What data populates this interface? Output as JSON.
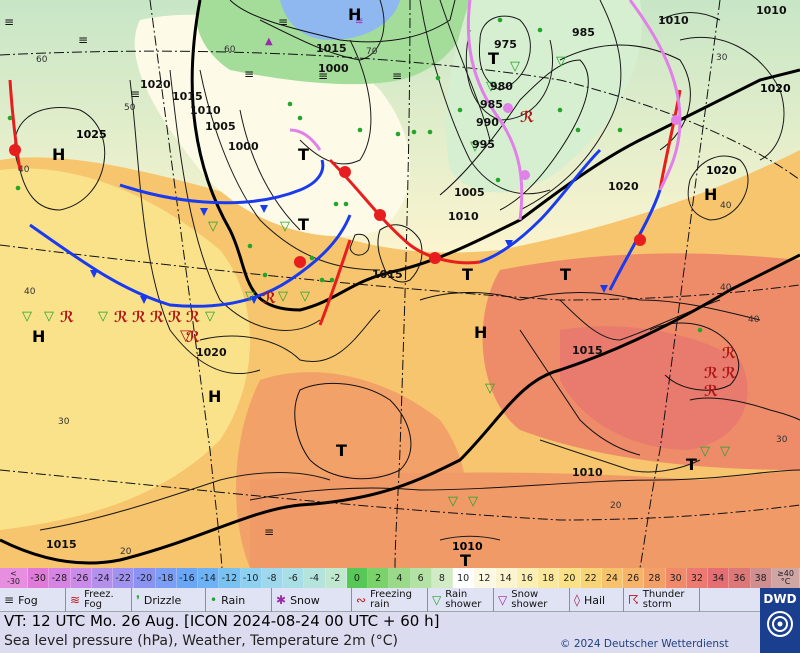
{
  "map": {
    "pressure_centres": [
      {
        "letter": "H",
        "value": "1025"
      },
      {
        "letter": "H",
        "value": "1020"
      },
      {
        "letter": "H",
        "value": "1020"
      },
      {
        "letter": "H",
        "value": ""
      },
      {
        "letter": "H",
        "value": ""
      },
      {
        "letter": "T",
        "value": "975"
      },
      {
        "letter": "T",
        "value": "995"
      },
      {
        "letter": "T",
        "value": ""
      },
      {
        "letter": "T",
        "value": ""
      },
      {
        "letter": "T",
        "value": ""
      },
      {
        "letter": "T",
        "value": "1010"
      }
    ],
    "isobar_labels": [
      "1015",
      "1010",
      "1005",
      "1000",
      "1000",
      "995",
      "990",
      "985",
      "980",
      "975",
      "985",
      "1010",
      "1005",
      "1010",
      "1020",
      "1015",
      "1015",
      "1020",
      "1015",
      "1020",
      "1010",
      "1010",
      "1015"
    ],
    "temperature_labels": [
      "40",
      "40",
      "40",
      "30",
      "20",
      "20",
      "30",
      "40",
      "40",
      "50",
      "60",
      "60",
      "70",
      "30"
    ],
    "colors": {
      "warm_front": "#e81e1e",
      "cold_front": "#1a3aef",
      "occlusion": "#e080e8",
      "rain": "#22a52a",
      "thunder": "#b01818",
      "sea_hot": "#f49a63"
    }
  },
  "scale": {
    "low_edge_top": "<",
    "low_edge_bottom": "-30",
    "high_edge_top": "≥40",
    "high_edge_bottom": "°C",
    "items": [
      {
        "label": "-30",
        "color": "#e07ad8"
      },
      {
        "label": "-28",
        "color": "#d584e3"
      },
      {
        "label": "-26",
        "color": "#c98ae8"
      },
      {
        "label": "-24",
        "color": "#b490ed"
      },
      {
        "label": "-22",
        "color": "#a292ef"
      },
      {
        "label": "-20",
        "color": "#8a93f2"
      },
      {
        "label": "-18",
        "color": "#7a9df5"
      },
      {
        "label": "-16",
        "color": "#6aa6f6"
      },
      {
        "label": "-14",
        "color": "#6cb2f4"
      },
      {
        "label": "-12",
        "color": "#78c2f2"
      },
      {
        "label": "-10",
        "color": "#8ed0f0"
      },
      {
        "label": "-8",
        "color": "#9fd7ec"
      },
      {
        "label": "-6",
        "color": "#a8dee6"
      },
      {
        "label": "-4",
        "color": "#b4e4dc"
      },
      {
        "label": "-2",
        "color": "#c0e8cf"
      },
      {
        "label": "0",
        "color": "#57c758"
      },
      {
        "label": "2",
        "color": "#7ad26a"
      },
      {
        "label": "4",
        "color": "#9ad88a"
      },
      {
        "label": "6",
        "color": "#b4e2a4"
      },
      {
        "label": "8",
        "color": "#d1ecc4"
      },
      {
        "label": "10",
        "color": "#ffffff"
      },
      {
        "label": "12",
        "color": "#fbf8e4"
      },
      {
        "label": "14",
        "color": "#fcf4cf"
      },
      {
        "label": "16",
        "color": "#fcefb6"
      },
      {
        "label": "18",
        "color": "#fbe89c"
      },
      {
        "label": "20",
        "color": "#fae186"
      },
      {
        "label": "22",
        "color": "#f8d478"
      },
      {
        "label": "24",
        "color": "#f6c36b"
      },
      {
        "label": "26",
        "color": "#f5b46a"
      },
      {
        "label": "28",
        "color": "#f3a068"
      },
      {
        "label": "30",
        "color": "#f08a6a"
      },
      {
        "label": "32",
        "color": "#ec7a70"
      },
      {
        "label": "34",
        "color": "#e46e72"
      },
      {
        "label": "36",
        "color": "#dc7878"
      },
      {
        "label": "38",
        "color": "#cf8f90"
      }
    ]
  },
  "legend": [
    {
      "icon": "fog-icon",
      "symbol": "≡",
      "label": "Fog",
      "width": 66,
      "color": "#222"
    },
    {
      "icon": "freezing-fog-icon",
      "symbol": "≋",
      "label": "Freez.\nFog",
      "width": 66,
      "color": "#c0141c"
    },
    {
      "icon": "drizzle-icon",
      "symbol": "❜",
      "label": "Drizzle",
      "width": 74,
      "color": "#22a52a"
    },
    {
      "icon": "rain-icon",
      "symbol": "•",
      "label": "Rain",
      "width": 66,
      "color": "#22a52a"
    },
    {
      "icon": "snow-icon",
      "symbol": "✱",
      "label": "Snow",
      "width": 80,
      "color": "#9a2aa8"
    },
    {
      "icon": "freezing-rain-icon",
      "symbol": "∾",
      "label": "Freezing\nrain",
      "width": 76,
      "color": "#c0141c"
    },
    {
      "icon": "rain-shower-icon",
      "symbol": "▽",
      "label": "Rain\nshower",
      "width": 66,
      "color": "#22a52a"
    },
    {
      "icon": "snow-shower-icon",
      "symbol": "▽",
      "label": "Snow\nshower",
      "width": 76,
      "color": "#9a2aa8"
    },
    {
      "icon": "hail-icon",
      "symbol": "◊",
      "label": "Hail",
      "width": 54,
      "color": "#9a2050"
    },
    {
      "icon": "thunderstorm-icon",
      "symbol": "☈",
      "label": "Thunder\nstorm",
      "width": 76,
      "color": "#b01818"
    }
  ],
  "info": {
    "valid_time": "VT: 12 UTC Mo.  26 Aug. [ICON 2024-08-24  00 UTC + 60 h]",
    "subtitle": "Sea level pressure (hPa), Weather, Temperature 2m (°C)",
    "copyright": "© 2024 Deutscher Wetterdienst",
    "logo": "DWD"
  }
}
